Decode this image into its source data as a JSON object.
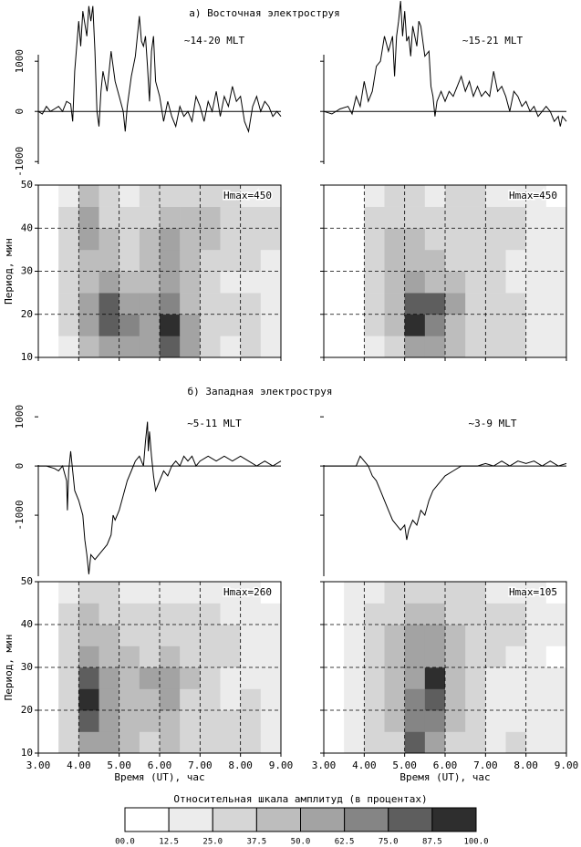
{
  "headings": [
    "а) Восточная электроструя",
    "б) Западная электроструя"
  ],
  "chart_data": [
    {
      "type": "line",
      "annotation": "~14-20 MLT",
      "color": "#000000",
      "xlim": [
        3,
        9
      ],
      "ylim": [
        -1050,
        2130
      ],
      "yticks": [
        -1000,
        0,
        1000
      ],
      "tick_labels": true,
      "x": [
        3.0,
        3.1,
        3.2,
        3.3,
        3.4,
        3.5,
        3.6,
        3.7,
        3.8,
        3.85,
        3.9,
        4.0,
        4.05,
        4.1,
        4.2,
        4.25,
        4.3,
        4.35,
        4.4,
        4.45,
        4.5,
        4.55,
        4.6,
        4.7,
        4.8,
        4.9,
        5.0,
        5.1,
        5.15,
        5.2,
        5.3,
        5.4,
        5.5,
        5.55,
        5.6,
        5.65,
        5.7,
        5.75,
        5.8,
        5.85,
        5.9,
        6.0,
        6.1,
        6.2,
        6.3,
        6.4,
        6.5,
        6.6,
        6.7,
        6.8,
        6.9,
        7.0,
        7.1,
        7.2,
        7.3,
        7.4,
        7.5,
        7.6,
        7.7,
        7.8,
        7.9,
        8.0,
        8.1,
        8.2,
        8.3,
        8.4,
        8.5,
        8.6,
        8.7,
        8.8,
        8.9,
        9.0
      ],
      "values": [
        0,
        -50,
        100,
        0,
        50,
        100,
        0,
        200,
        150,
        -200,
        800,
        1800,
        1300,
        2000,
        1500,
        2100,
        1800,
        2100,
        1200,
        0,
        -300,
        400,
        800,
        400,
        1200,
        600,
        300,
        0,
        -400,
        100,
        700,
        1100,
        1900,
        1400,
        1300,
        1500,
        900,
        200,
        1200,
        1500,
        600,
        300,
        -200,
        200,
        -100,
        -300,
        100,
        -100,
        0,
        -200,
        300,
        100,
        -200,
        200,
        0,
        400,
        -100,
        300,
        100,
        500,
        200,
        300,
        -200,
        -400,
        100,
        300,
        0,
        200,
        100,
        -100,
        0,
        -100
      ]
    },
    {
      "type": "line",
      "annotation": "~15-21 MLT",
      "color": "#000000",
      "xlim": [
        3,
        9
      ],
      "ylim": [
        -1050,
        2130
      ],
      "yticks": [
        -1000,
        0,
        1000
      ],
      "tick_labels": false,
      "x": [
        3.0,
        3.2,
        3.4,
        3.6,
        3.7,
        3.8,
        3.9,
        4.0,
        4.1,
        4.2,
        4.3,
        4.4,
        4.5,
        4.6,
        4.7,
        4.75,
        4.8,
        4.85,
        4.9,
        4.95,
        5.0,
        5.05,
        5.1,
        5.15,
        5.2,
        5.3,
        5.35,
        5.4,
        5.5,
        5.6,
        5.65,
        5.7,
        5.75,
        5.8,
        5.9,
        6.0,
        6.1,
        6.2,
        6.3,
        6.4,
        6.5,
        6.6,
        6.7,
        6.8,
        6.9,
        7.0,
        7.1,
        7.2,
        7.3,
        7.4,
        7.5,
        7.6,
        7.7,
        7.8,
        7.9,
        8.0,
        8.1,
        8.2,
        8.3,
        8.4,
        8.5,
        8.6,
        8.7,
        8.8,
        8.85,
        8.9,
        9.0
      ],
      "values": [
        0,
        -50,
        50,
        100,
        -50,
        300,
        100,
        600,
        200,
        400,
        900,
        1000,
        1500,
        1200,
        1500,
        700,
        1500,
        1800,
        2200,
        1500,
        2000,
        1400,
        1500,
        1100,
        1700,
        1300,
        1800,
        1700,
        1100,
        1200,
        500,
        300,
        -100,
        200,
        400,
        200,
        400,
        300,
        500,
        700,
        400,
        600,
        300,
        500,
        300,
        400,
        300,
        800,
        400,
        500,
        300,
        0,
        400,
        300,
        100,
        200,
        0,
        100,
        -100,
        0,
        100,
        0,
        -200,
        -100,
        -300,
        -100,
        -200
      ]
    },
    {
      "type": "line",
      "annotation": "~5-11 MLT",
      "color": "#000000",
      "xlim": [
        3,
        9
      ],
      "ylim": [
        -2240,
        1040
      ],
      "yticks": [
        -1000,
        0,
        1000
      ],
      "tick_labels": true,
      "x": [
        3.0,
        3.2,
        3.4,
        3.5,
        3.6,
        3.7,
        3.72,
        3.75,
        3.8,
        3.85,
        3.9,
        4.0,
        4.1,
        4.15,
        4.2,
        4.25,
        4.3,
        4.4,
        4.5,
        4.6,
        4.7,
        4.8,
        4.85,
        4.9,
        5.0,
        5.1,
        5.2,
        5.3,
        5.4,
        5.5,
        5.6,
        5.65,
        5.7,
        5.72,
        5.75,
        5.8,
        5.85,
        5.9,
        6.0,
        6.1,
        6.2,
        6.3,
        6.4,
        6.5,
        6.6,
        6.7,
        6.8,
        6.9,
        7.0,
        7.2,
        7.4,
        7.6,
        7.8,
        8.0,
        8.2,
        8.4,
        8.6,
        8.8,
        9.0
      ],
      "values": [
        0,
        0,
        -50,
        -100,
        0,
        -300,
        -900,
        -100,
        300,
        -100,
        -500,
        -700,
        -1000,
        -1500,
        -1800,
        -2200,
        -1800,
        -1900,
        -1800,
        -1700,
        -1600,
        -1400,
        -1000,
        -1100,
        -900,
        -600,
        -300,
        -100,
        100,
        200,
        0,
        500,
        900,
        300,
        700,
        200,
        -200,
        -500,
        -300,
        -100,
        -200,
        0,
        100,
        0,
        200,
        100,
        200,
        0,
        100,
        200,
        100,
        200,
        100,
        200,
        100,
        0,
        100,
        0,
        100
      ]
    },
    {
      "type": "line",
      "annotation": "~3-9 MLT",
      "color": "#000000",
      "xlim": [
        3,
        9
      ],
      "ylim": [
        -2240,
        1040
      ],
      "yticks": [
        -1000,
        0,
        1000
      ],
      "tick_labels": false,
      "x": [
        3.0,
        3.5,
        3.8,
        3.9,
        4.0,
        4.1,
        4.2,
        4.3,
        4.4,
        4.5,
        4.6,
        4.7,
        4.8,
        4.9,
        5.0,
        5.05,
        5.1,
        5.2,
        5.3,
        5.4,
        5.5,
        5.6,
        5.7,
        5.8,
        5.9,
        6.0,
        6.2,
        6.4,
        6.6,
        6.8,
        7.0,
        7.2,
        7.4,
        7.6,
        7.8,
        8.0,
        8.2,
        8.4,
        8.6,
        8.8,
        9.0
      ],
      "values": [
        0,
        0,
        0,
        200,
        100,
        0,
        -200,
        -300,
        -500,
        -700,
        -900,
        -1100,
        -1200,
        -1300,
        -1200,
        -1500,
        -1300,
        -1100,
        -1200,
        -900,
        -1000,
        -700,
        -500,
        -400,
        -300,
        -200,
        -100,
        0,
        0,
        0,
        50,
        0,
        100,
        0,
        100,
        50,
        100,
        0,
        100,
        0,
        50
      ]
    },
    {
      "type": "heatmap",
      "annotation": "Hmax=450",
      "ylabel": "Период, мин",
      "xlim": [
        3,
        9
      ],
      "ylim": [
        10,
        50
      ],
      "xticks": [
        3,
        4,
        5,
        6,
        7,
        8,
        9
      ],
      "yticks": [
        10,
        20,
        30,
        40,
        50
      ],
      "tick_labels": true,
      "xtick_labels": false,
      "xbins": [
        3,
        3.5,
        4,
        4.5,
        5,
        5.5,
        6,
        6.5,
        7,
        7.5,
        8,
        8.5,
        9
      ],
      "ybins": [
        10,
        15,
        20,
        25,
        30,
        35,
        40,
        45,
        50
      ],
      "z": [
        [
          10,
          20,
          40,
          55,
          60,
          60,
          80,
          50,
          30,
          20,
          30,
          20
        ],
        [
          10,
          25,
          55,
          85,
          70,
          60,
          95,
          50,
          30,
          25,
          30,
          20
        ],
        [
          10,
          30,
          50,
          80,
          60,
          55,
          70,
          40,
          30,
          25,
          25,
          20
        ],
        [
          10,
          30,
          45,
          55,
          45,
          40,
          55,
          40,
          30,
          20,
          20,
          20
        ],
        [
          10,
          30,
          45,
          45,
          35,
          40,
          50,
          45,
          35,
          30,
          25,
          20
        ],
        [
          10,
          25,
          50,
          40,
          35,
          45,
          50,
          45,
          40,
          35,
          30,
          25
        ],
        [
          10,
          25,
          55,
          35,
          30,
          35,
          45,
          40,
          40,
          35,
          30,
          25
        ],
        [
          5,
          20,
          40,
          25,
          20,
          25,
          30,
          30,
          25,
          25,
          20,
          15
        ]
      ]
    },
    {
      "type": "heatmap",
      "annotation": "Hmax=450",
      "xlim": [
        3,
        9
      ],
      "ylim": [
        10,
        50
      ],
      "xticks": [
        3,
        4,
        5,
        6,
        7,
        8,
        9
      ],
      "yticks": [
        10,
        20,
        30,
        40,
        50
      ],
      "tick_labels": false,
      "xtick_labels": false,
      "xbins": [
        3,
        3.5,
        4,
        4.5,
        5,
        5.5,
        6,
        6.5,
        7,
        7.5,
        8,
        8.5,
        9
      ],
      "ybins": [
        10,
        15,
        20,
        25,
        30,
        35,
        40,
        45,
        50
      ],
      "z": [
        [
          5,
          10,
          20,
          35,
          55,
          60,
          40,
          30,
          25,
          30,
          20,
          15
        ],
        [
          5,
          10,
          25,
          45,
          90,
          70,
          45,
          30,
          25,
          30,
          20,
          15
        ],
        [
          5,
          10,
          25,
          45,
          80,
          75,
          50,
          30,
          25,
          25,
          20,
          15
        ],
        [
          5,
          10,
          25,
          40,
          55,
          45,
          40,
          30,
          25,
          20,
          20,
          15
        ],
        [
          5,
          10,
          25,
          40,
          45,
          40,
          35,
          30,
          25,
          20,
          15,
          15
        ],
        [
          5,
          10,
          30,
          40,
          40,
          35,
          35,
          30,
          30,
          25,
          20,
          15
        ],
        [
          5,
          10,
          30,
          35,
          35,
          30,
          35,
          35,
          30,
          25,
          20,
          15
        ],
        [
          5,
          10,
          20,
          25,
          25,
          20,
          25,
          25,
          20,
          20,
          15,
          10
        ]
      ]
    },
    {
      "type": "heatmap",
      "annotation": "Hmax=260",
      "ylabel": "Период, мин",
      "xlabel": "Время (UT), час",
      "xlim": [
        3,
        9
      ],
      "ylim": [
        10,
        50
      ],
      "xticks": [
        {
          "value": 3,
          "label": "3.00"
        },
        {
          "value": 4,
          "label": "4.00"
        },
        {
          "value": 5,
          "label": "5.00"
        },
        {
          "value": 6,
          "label": "6.00"
        },
        {
          "value": 7,
          "label": "7.00"
        },
        {
          "value": 8,
          "label": "8.00"
        },
        {
          "value": 9,
          "label": "9.00"
        }
      ],
      "yticks": [
        10,
        20,
        30,
        40,
        50
      ],
      "tick_labels": true,
      "xtick_labels": true,
      "xbins": [
        3,
        3.5,
        4,
        4.5,
        5,
        5.5,
        6,
        6.5,
        7,
        7.5,
        8,
        8.5,
        9
      ],
      "ybins": [
        10,
        15,
        20,
        25,
        30,
        35,
        40,
        45,
        50
      ],
      "z": [
        [
          10,
          30,
          60,
          55,
          40,
          35,
          40,
          35,
          25,
          25,
          30,
          20
        ],
        [
          10,
          35,
          80,
          60,
          45,
          40,
          45,
          35,
          25,
          25,
          30,
          20
        ],
        [
          10,
          35,
          90,
          60,
          45,
          45,
          50,
          35,
          25,
          20,
          25,
          20
        ],
        [
          10,
          35,
          75,
          55,
          45,
          50,
          55,
          40,
          25,
          20,
          20,
          15
        ],
        [
          10,
          30,
          55,
          45,
          40,
          35,
          40,
          35,
          30,
          25,
          20,
          15
        ],
        [
          10,
          30,
          45,
          40,
          35,
          35,
          35,
          30,
          30,
          25,
          20,
          15
        ],
        [
          10,
          25,
          40,
          35,
          30,
          30,
          30,
          25,
          25,
          20,
          20,
          15
        ],
        [
          5,
          20,
          30,
          25,
          20,
          20,
          20,
          20,
          15,
          15,
          15,
          10
        ]
      ]
    },
    {
      "type": "heatmap",
      "annotation": "Hmax=105",
      "xlabel": "Время (UT), час",
      "xlim": [
        3,
        9
      ],
      "ylim": [
        10,
        50
      ],
      "xticks": [
        {
          "value": 3,
          "label": "3.00"
        },
        {
          "value": 4,
          "label": "4.00"
        },
        {
          "value": 5,
          "label": "5.00"
        },
        {
          "value": 6,
          "label": "6.00"
        },
        {
          "value": 7,
          "label": "7.00"
        },
        {
          "value": 8,
          "label": "8.00"
        },
        {
          "value": 9,
          "label": "9.00"
        }
      ],
      "yticks": [
        10,
        20,
        30,
        40,
        50
      ],
      "tick_labels": false,
      "xtick_labels": true,
      "xbins": [
        3,
        3.5,
        4,
        4.5,
        5,
        5.5,
        6,
        6.5,
        7,
        7.5,
        8,
        8.5,
        9
      ],
      "ybins": [
        10,
        15,
        20,
        25,
        30,
        35,
        40,
        45,
        50
      ],
      "z": [
        [
          5,
          20,
          25,
          35,
          85,
          60,
          35,
          25,
          20,
          25,
          20,
          15
        ],
        [
          5,
          20,
          25,
          40,
          70,
          70,
          40,
          25,
          20,
          20,
          20,
          15
        ],
        [
          5,
          20,
          25,
          40,
          65,
          80,
          45,
          25,
          20,
          20,
          20,
          15
        ],
        [
          5,
          20,
          25,
          40,
          60,
          90,
          45,
          25,
          20,
          20,
          15,
          15
        ],
        [
          5,
          20,
          25,
          40,
          55,
          60,
          40,
          30,
          25,
          20,
          15,
          10
        ],
        [
          5,
          20,
          25,
          40,
          50,
          50,
          40,
          35,
          30,
          25,
          20,
          15
        ],
        [
          5,
          15,
          25,
          35,
          45,
          40,
          35,
          30,
          30,
          25,
          20,
          15
        ],
        [
          5,
          15,
          20,
          25,
          30,
          30,
          25,
          25,
          20,
          20,
          15,
          10
        ]
      ]
    },
    {
      "type": "colorbar",
      "title": "Относительная шкала амплитуд (в процентах)",
      "ticks": [
        {
          "value": 0,
          "label": "00.0"
        },
        12.5,
        {
          "value": 25,
          "label": "25.0"
        },
        37.5,
        {
          "value": 50,
          "label": "50.0"
        },
        62.5,
        {
          "value": 75,
          "label": "75.0"
        },
        87.5,
        {
          "value": 100,
          "label": "100.0"
        }
      ],
      "colors": [
        "#ffffff",
        "#ececec",
        "#d6d6d6",
        "#bdbdbd",
        "#a3a3a3",
        "#858585",
        "#5e5e5e",
        "#2e2e2e"
      ]
    }
  ]
}
